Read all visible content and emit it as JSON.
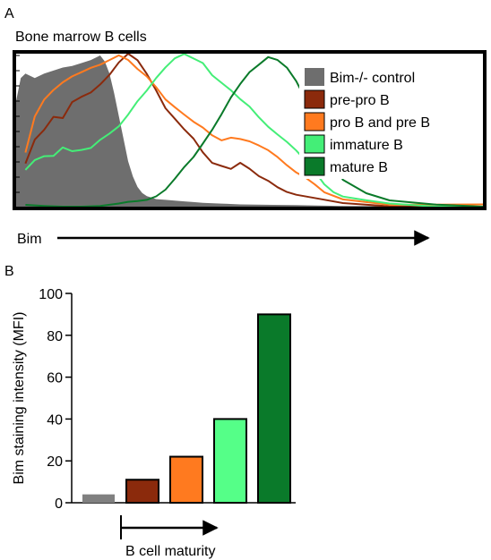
{
  "figure": {
    "panel_a_letter": "A",
    "panel_b_letter": "B"
  },
  "chart_data": [
    {
      "panel": "A",
      "type": "line",
      "title": "Bone marrow B cells",
      "xlabel": "Bim",
      "ylabel": "",
      "xlim": [
        0,
        100
      ],
      "ylim": [
        0,
        100
      ],
      "grid": false,
      "legend_position": "right",
      "series": [
        {
          "name": "Bim-/- control",
          "style": "filled-area",
          "color": "#6e6e6e",
          "x": [
            0,
            1,
            2,
            4,
            6,
            8,
            10,
            12,
            14,
            16,
            18,
            19,
            20,
            21,
            22,
            23,
            24,
            25,
            26,
            27,
            28,
            29,
            30,
            32,
            34,
            36,
            38,
            40,
            44,
            48,
            55,
            60,
            70,
            80,
            90,
            100
          ],
          "y": [
            70,
            85,
            88,
            85,
            88,
            90,
            92,
            93,
            95,
            97,
            100,
            96,
            88,
            75,
            60,
            45,
            30,
            20,
            13,
            9,
            7,
            6,
            5,
            4.5,
            4,
            3.5,
            3,
            2.5,
            2,
            1.5,
            1.2,
            1,
            0.5,
            0.3,
            0.2,
            0.1
          ]
        },
        {
          "name": "pre-pro B",
          "color": "#8b2a0c",
          "x": [
            2,
            4,
            6,
            8,
            10,
            12,
            14,
            16,
            18,
            20,
            22,
            24,
            26,
            28,
            30,
            32,
            34,
            36,
            38,
            40,
            42,
            44,
            46,
            48,
            50,
            52,
            54,
            56,
            58,
            60,
            65,
            70,
            80,
            90,
            100
          ],
          "y": [
            28,
            45,
            52,
            60,
            58,
            68,
            72,
            76,
            82,
            88,
            95,
            100,
            96,
            88,
            78,
            66,
            58,
            50,
            44,
            36,
            30,
            28,
            25,
            28,
            24,
            20,
            18,
            14,
            10,
            7,
            4,
            2,
            1,
            0.5,
            0.2
          ]
        },
        {
          "name": "pro B and pre B",
          "color": "#ff7a1f",
          "x": [
            2,
            4,
            6,
            8,
            10,
            12,
            14,
            16,
            18,
            20,
            22,
            24,
            26,
            28,
            30,
            32,
            34,
            36,
            38,
            40,
            42,
            44,
            46,
            48,
            50,
            52,
            54,
            56,
            58,
            60,
            62,
            64,
            66,
            70,
            80,
            90,
            100
          ],
          "y": [
            35,
            60,
            72,
            78,
            82,
            85,
            88,
            92,
            95,
            98,
            100,
            96,
            90,
            86,
            80,
            72,
            66,
            60,
            55,
            52,
            48,
            45,
            46,
            44,
            42,
            40,
            38,
            34,
            28,
            22,
            18,
            14,
            10,
            6,
            2,
            1,
            0.3
          ]
        },
        {
          "name": "immature B",
          "color": "#44ee77",
          "x": [
            2,
            4,
            6,
            8,
            10,
            12,
            14,
            16,
            18,
            20,
            22,
            24,
            26,
            28,
            30,
            32,
            34,
            36,
            38,
            40,
            42,
            44,
            46,
            48,
            50,
            52,
            54,
            56,
            58,
            60,
            62,
            64,
            66,
            68,
            70,
            75,
            80,
            90,
            100
          ],
          "y": [
            25,
            32,
            34,
            33,
            38,
            36,
            38,
            40,
            45,
            48,
            52,
            60,
            70,
            78,
            86,
            92,
            97,
            100,
            98,
            96,
            88,
            82,
            76,
            70,
            66,
            60,
            54,
            48,
            42,
            36,
            30,
            24,
            16,
            10,
            6,
            3,
            1.5,
            0.5,
            0.2
          ]
        },
        {
          "name": "mature B",
          "color": "#0a7a2a",
          "x": [
            2,
            6,
            10,
            14,
            18,
            22,
            24,
            26,
            28,
            30,
            32,
            34,
            36,
            38,
            40,
            42,
            44,
            46,
            48,
            50,
            52,
            54,
            56,
            58,
            60,
            62,
            64,
            66,
            68,
            70,
            75,
            80,
            90,
            100
          ],
          "y": [
            0,
            0,
            0.5,
            1,
            1,
            1.5,
            2,
            3,
            5,
            8,
            12,
            18,
            25,
            32,
            42,
            52,
            62,
            72,
            80,
            88,
            94,
            100,
            98,
            92,
            82,
            70,
            58,
            44,
            30,
            18,
            8,
            3,
            1,
            0.3
          ]
        }
      ]
    },
    {
      "panel": "B",
      "type": "bar",
      "title": "",
      "xlabel": "B cell maturity",
      "ylabel": "Bim staining intensity (MFI)",
      "ylim": [
        0,
        100
      ],
      "yticks": [
        0,
        20,
        40,
        60,
        80,
        100
      ],
      "grid": false,
      "categories": [
        "Bim-/- control",
        "pre-pro B",
        "pro B and pre B",
        "immature B",
        "mature B"
      ],
      "values": [
        4,
        11,
        22,
        40,
        90
      ],
      "colors": [
        "#808080",
        "#8b2a0c",
        "#ff7a1f",
        "#55ff88",
        "#0a7a2a"
      ],
      "bar_outline": [
        false,
        true,
        true,
        true,
        true
      ]
    }
  ]
}
